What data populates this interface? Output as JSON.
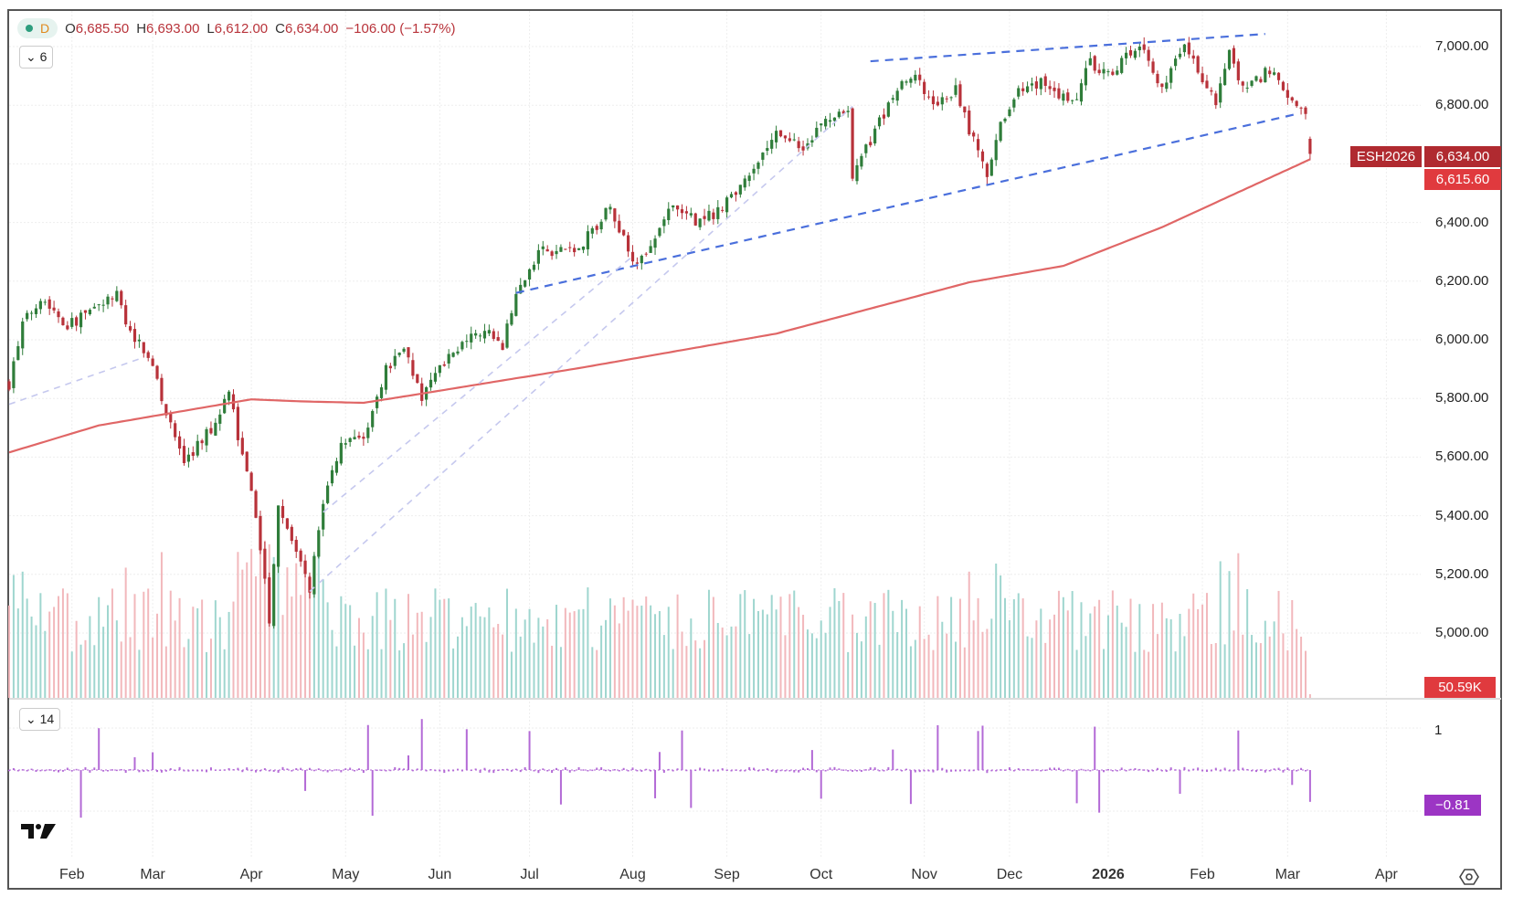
{
  "header": {
    "interval": "D",
    "open_label": "O",
    "open": "6,685.50",
    "high_label": "H",
    "high": "6,693.00",
    "low_label": "L",
    "low": "6,612.00",
    "close_label": "C",
    "close": "6,634.00",
    "change": "−106.00 (−1.57%)"
  },
  "pane_toggles": {
    "main": "6",
    "indicator": "14"
  },
  "tags": {
    "symbol": "ESH2026",
    "last_price": "6,634.00",
    "ma_value": "6,615.60",
    "volume": "50.59K",
    "indicator": "−0.81"
  },
  "colors": {
    "up": "#2f7d3a",
    "down": "#b8323a",
    "ma": "#e06666",
    "trend": "#4a6fdc",
    "trend_light": "#c5c8ee",
    "indicator": "#b36ad6",
    "vol_up": "#9fd6cf",
    "vol_down": "#f2b8bc"
  },
  "chart_data": {
    "type": "candlestick",
    "symbol": "ESH2026",
    "ylim": [
      4480,
      7130
    ],
    "price_ticks": [
      "7,000.00",
      "6,800.00",
      "6,400.00",
      "6,200.00",
      "6,000.00",
      "5,800.00",
      "5,600.00",
      "5,400.00",
      "5,200.00",
      "5,000.00"
    ],
    "price_tick_values": [
      7000,
      6800,
      6400,
      6200,
      6000,
      5800,
      5600,
      5400,
      5200,
      5000
    ],
    "time_ticks": [
      {
        "label": "Feb",
        "bar": 14
      },
      {
        "label": "Mar",
        "bar": 32
      },
      {
        "label": "Apr",
        "bar": 54
      },
      {
        "label": "May",
        "bar": 75
      },
      {
        "label": "Jun",
        "bar": 96
      },
      {
        "label": "Jul",
        "bar": 116
      },
      {
        "label": "Aug",
        "bar": 139
      },
      {
        "label": "Sep",
        "bar": 160
      },
      {
        "label": "Oct",
        "bar": 181
      },
      {
        "label": "Nov",
        "bar": 204
      },
      {
        "label": "Dec",
        "bar": 223
      },
      {
        "label": "2026",
        "bar": 245,
        "bold": true
      },
      {
        "label": "Feb",
        "bar": 266
      },
      {
        "label": "Mar",
        "bar": 285
      },
      {
        "label": "Apr",
        "bar": 307
      }
    ],
    "bars": 291,
    "close_waypoints": [
      [
        0,
        5850
      ],
      [
        3,
        6050
      ],
      [
        7,
        6150
      ],
      [
        13,
        6050
      ],
      [
        24,
        6150
      ],
      [
        26,
        6050
      ],
      [
        31,
        5950
      ],
      [
        35,
        5750
      ],
      [
        39,
        5580
      ],
      [
        45,
        5700
      ],
      [
        49,
        5820
      ],
      [
        52,
        5600
      ],
      [
        55,
        5400
      ],
      [
        58,
        5050
      ],
      [
        60,
        5450
      ],
      [
        63,
        5300
      ],
      [
        67,
        5150
      ],
      [
        70,
        5450
      ],
      [
        74,
        5650
      ],
      [
        79,
        5650
      ],
      [
        84,
        5900
      ],
      [
        88,
        5980
      ],
      [
        92,
        5800
      ],
      [
        95,
        5900
      ],
      [
        102,
        6000
      ],
      [
        108,
        6020
      ],
      [
        110,
        5980
      ],
      [
        113,
        6150
      ],
      [
        118,
        6300
      ],
      [
        126,
        6300
      ],
      [
        134,
        6450
      ],
      [
        140,
        6250
      ],
      [
        147,
        6450
      ],
      [
        154,
        6400
      ],
      [
        159,
        6450
      ],
      [
        164,
        6550
      ],
      [
        171,
        6700
      ],
      [
        177,
        6650
      ],
      [
        182,
        6750
      ],
      [
        187,
        6800
      ],
      [
        188,
        6550
      ],
      [
        192,
        6680
      ],
      [
        199,
        6900
      ],
      [
        202,
        6900
      ],
      [
        206,
        6800
      ],
      [
        211,
        6850
      ],
      [
        214,
        6720
      ],
      [
        218,
        6550
      ],
      [
        220,
        6700
      ],
      [
        225,
        6850
      ],
      [
        231,
        6880
      ],
      [
        237,
        6800
      ],
      [
        241,
        6950
      ],
      [
        245,
        6900
      ],
      [
        252,
        7020
      ],
      [
        257,
        6850
      ],
      [
        262,
        7000
      ],
      [
        269,
        6820
      ],
      [
        272,
        6980
      ],
      [
        275,
        6850
      ],
      [
        281,
        6920
      ],
      [
        285,
        6820
      ],
      [
        289,
        6760
      ],
      [
        290,
        6634
      ]
    ],
    "last_bar": {
      "open": 6685.5,
      "high": 6693,
      "low": 6612,
      "close": 6634
    },
    "ma200": [
      [
        0,
        5616
      ],
      [
        20,
        5708
      ],
      [
        54,
        5797
      ],
      [
        65,
        5790
      ],
      [
        79,
        5785
      ],
      [
        91,
        5814
      ],
      [
        128,
        5906
      ],
      [
        171,
        6021
      ],
      [
        214,
        6196
      ],
      [
        235,
        6252
      ],
      [
        257,
        6384
      ],
      [
        290,
        6615.6
      ]
    ],
    "trendlines": [
      {
        "style": "dashed",
        "from": [
          192,
          6950
        ],
        "to": [
          280,
          7043
        ]
      },
      {
        "style": "dashed",
        "from": [
          113,
          6160
        ],
        "to": [
          287,
          6770
        ]
      },
      {
        "style": "light",
        "from": [
          0,
          5780
        ],
        "to": [
          30,
          5940
        ]
      },
      {
        "style": "light",
        "from": [
          67,
          5142
        ],
        "to": [
          188,
          6796
        ]
      },
      {
        "style": "light",
        "from": [
          70,
          5412
        ],
        "to": [
          139,
          6285
        ]
      }
    ],
    "volume_last": "50.59K",
    "indicator": {
      "period": 14,
      "last": -0.81,
      "ticks": [
        "1"
      ]
    }
  }
}
